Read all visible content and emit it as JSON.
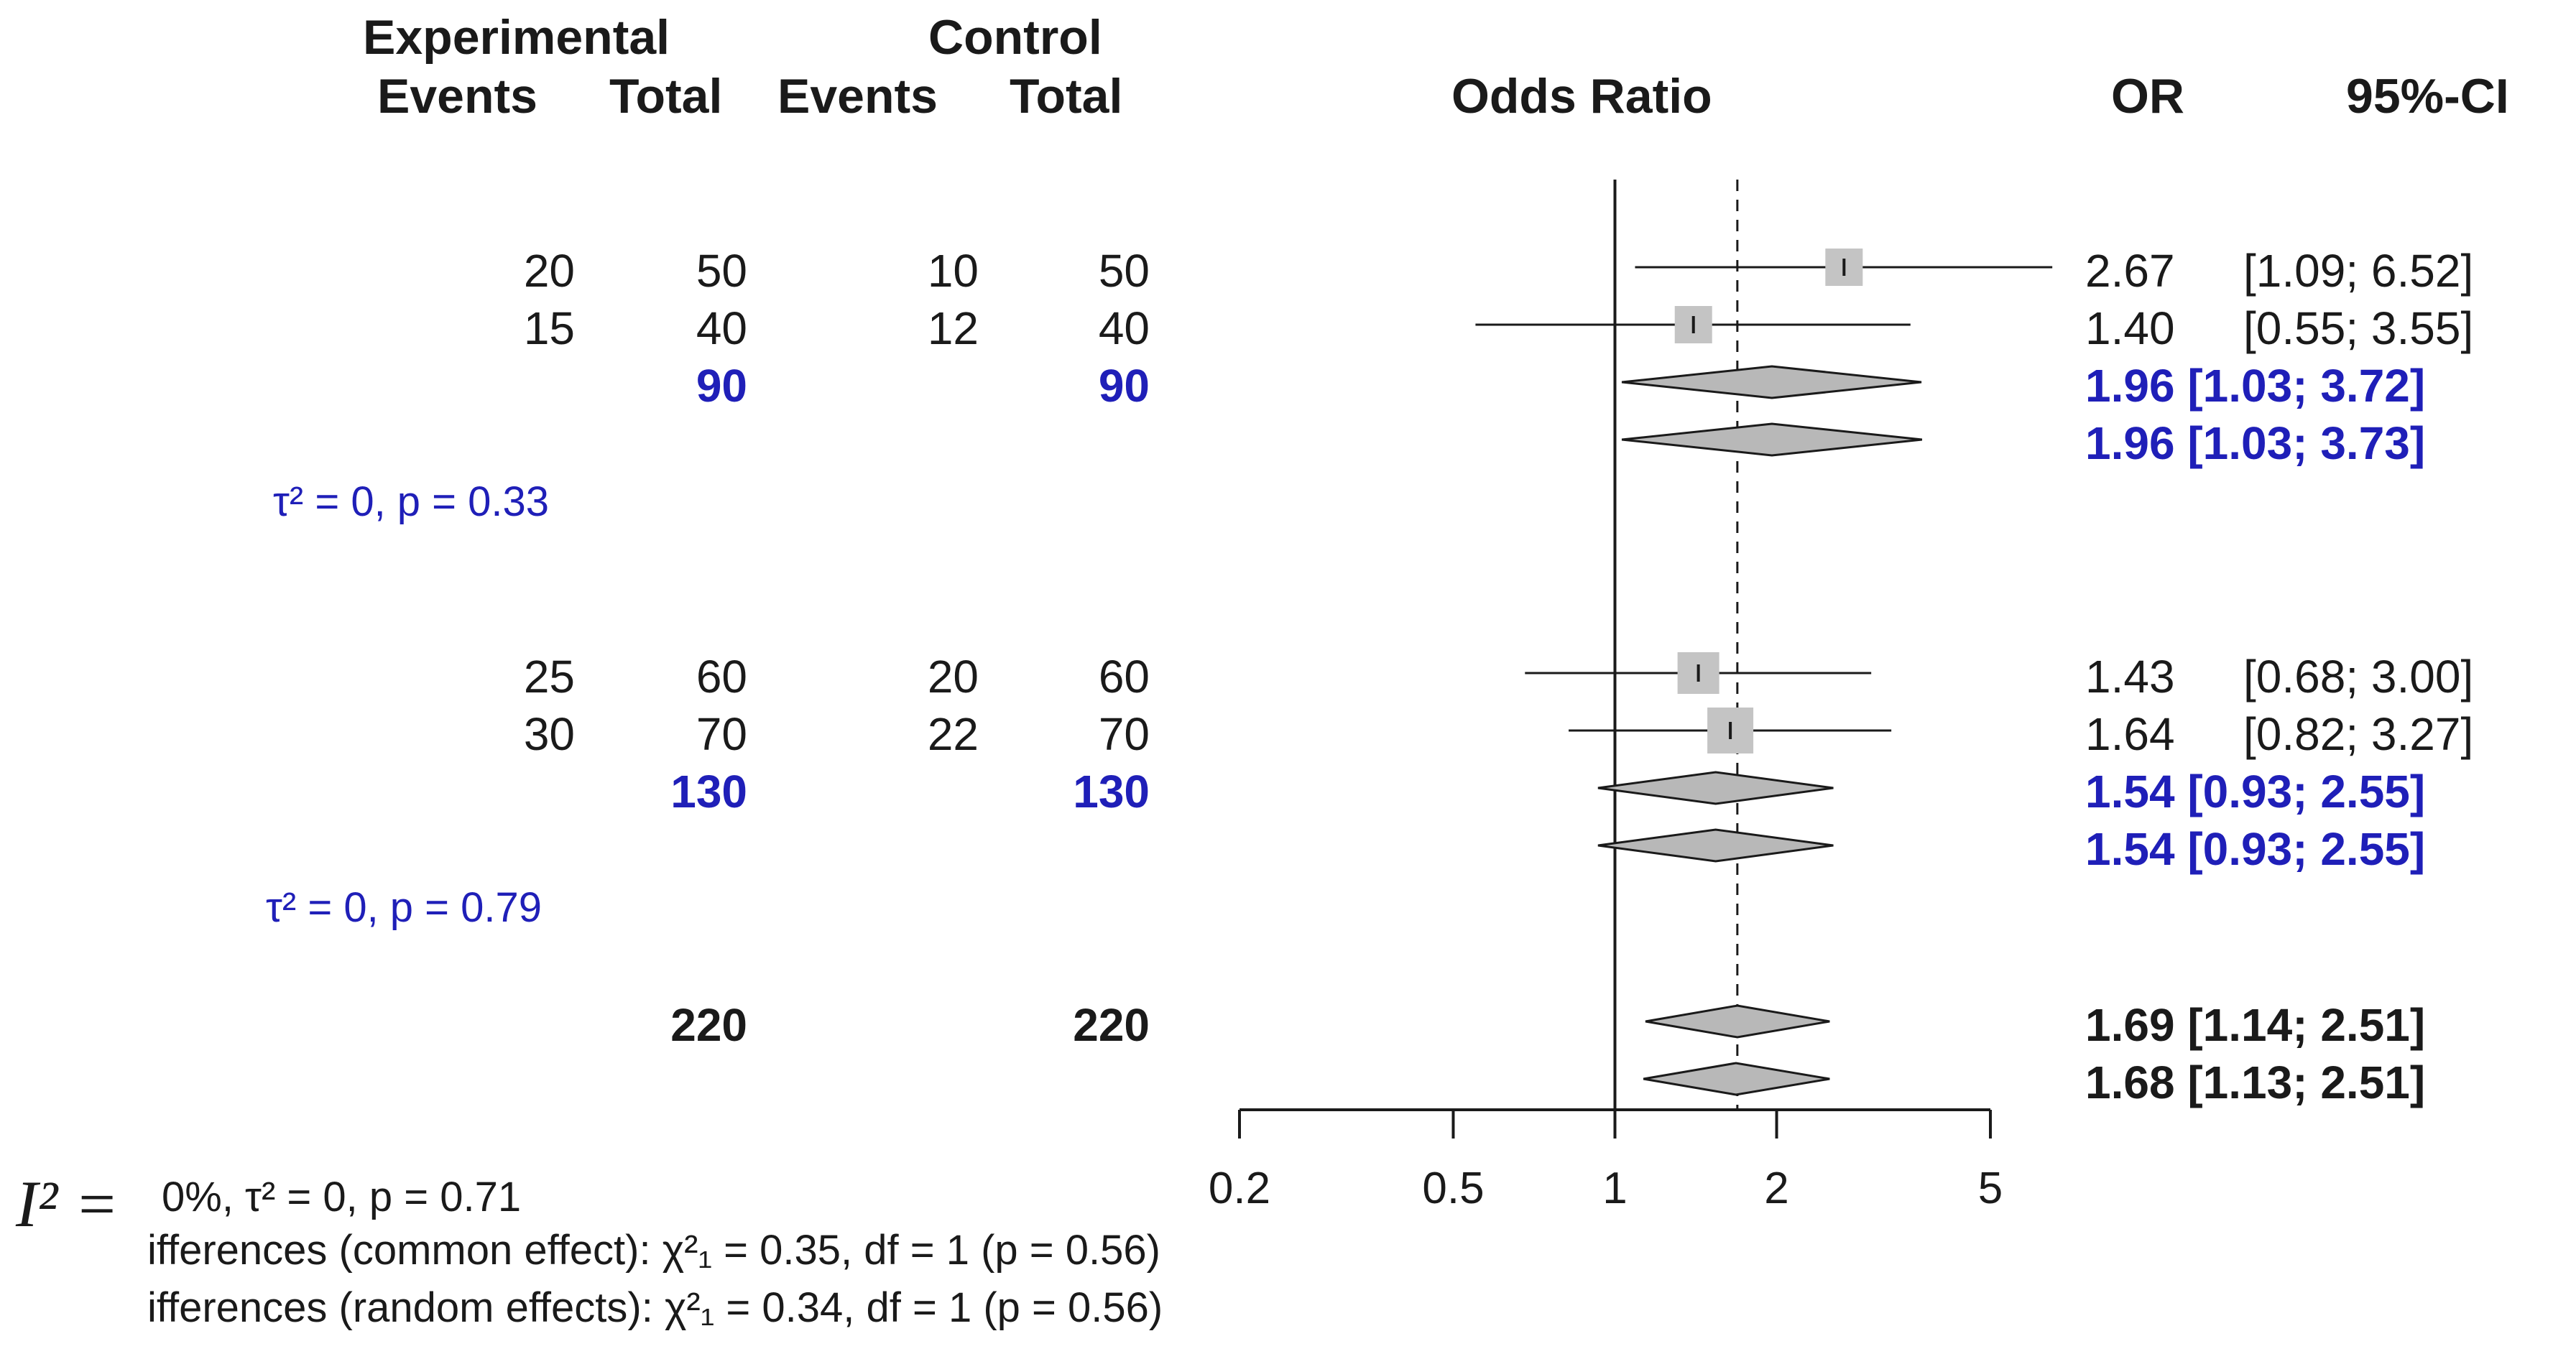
{
  "chart_data": {
    "type": "forest",
    "xlabel": "Odds Ratio",
    "xscale": "log",
    "xlim": [
      0.2,
      5
    ],
    "xticks": [
      0.2,
      0.5,
      1,
      2,
      5
    ],
    "xtick_labels": [
      "0.2",
      "0.5",
      "1",
      "2",
      "5"
    ],
    "reference_line": 1,
    "overall_effect_line": 1.69,
    "headers": {
      "experimental": "Experimental",
      "control": "Control",
      "events": "Events",
      "total": "Total",
      "odds_ratio": "Odds Ratio",
      "or": "OR",
      "ci": "95%-CI"
    },
    "studies": [
      {
        "exp_events": "20",
        "exp_total": "50",
        "ctrl_events": "10",
        "ctrl_total": "50",
        "or": 2.67,
        "lower": 1.09,
        "upper": 6.52,
        "or_text": "2.67",
        "ci_text": "[1.09; 6.52]"
      },
      {
        "exp_events": "15",
        "exp_total": "40",
        "ctrl_events": "12",
        "ctrl_total": "40",
        "or": 1.4,
        "lower": 0.55,
        "upper": 3.55,
        "or_text": "1.40",
        "ci_text": "[0.55; 3.55]"
      },
      {
        "exp_events": "25",
        "exp_total": "60",
        "ctrl_events": "20",
        "ctrl_total": "60",
        "or": 1.43,
        "lower": 0.68,
        "upper": 3.0,
        "or_text": "1.43",
        "ci_text": "[0.68; 3.00]"
      },
      {
        "exp_events": "30",
        "exp_total": "70",
        "ctrl_events": "22",
        "ctrl_total": "70",
        "or": 1.64,
        "lower": 0.82,
        "upper": 3.27,
        "or_text": "1.64",
        "ci_text": "[0.82; 3.27]"
      }
    ],
    "subgroups": [
      {
        "exp_total": "90",
        "ctrl_total": "90",
        "heterogeneity": "τ² = 0, p = 0.33",
        "common": {
          "or": 1.96,
          "lower": 1.03,
          "upper": 3.72,
          "text": "1.96 [1.03; 3.72]"
        },
        "random": {
          "or": 1.96,
          "lower": 1.03,
          "upper": 3.73,
          "text": "1.96 [1.03; 3.73]"
        }
      },
      {
        "exp_total": "130",
        "ctrl_total": "130",
        "heterogeneity": "τ² = 0, p = 0.79",
        "common": {
          "or": 1.54,
          "lower": 0.93,
          "upper": 2.55,
          "text": "1.54 [0.93; 2.55]"
        },
        "random": {
          "or": 1.54,
          "lower": 0.93,
          "upper": 2.55,
          "text": "1.54 [0.93; 2.55]"
        }
      }
    ],
    "overall": {
      "exp_total": "220",
      "ctrl_total": "220",
      "common": {
        "or": 1.69,
        "lower": 1.14,
        "upper": 2.51,
        "text": "1.69 [1.14; 2.51]"
      },
      "random": {
        "or": 1.68,
        "lower": 1.13,
        "upper": 2.51,
        "text": "1.68 [1.13; 2.51]"
      }
    },
    "footer": {
      "i2_label": "I² =",
      "overall_heterogeneity": "0%, τ² = 0, p = 0.71",
      "common_test": "ifferences (common effect): χ²₁ = 0.35, df = 1 (p = 0.56)",
      "random_test": "ifferences (random effects): χ²₁ = 0.34, df = 1 (p = 0.56)"
    },
    "colors": {
      "subgroup": "#1f1fb8",
      "text": "#1a1a1a",
      "marker": "#c4c4c4",
      "diamond": "#b8b8b8",
      "line": "#1a1a1a"
    }
  }
}
